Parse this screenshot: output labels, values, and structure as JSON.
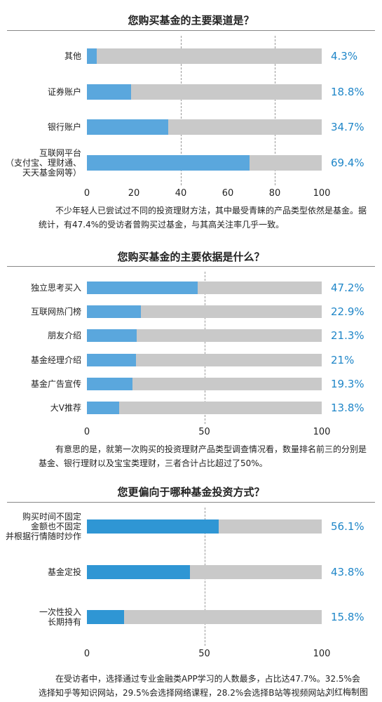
{
  "chart_data": [
    {
      "type": "bar",
      "title": "您购买基金的主要渠道是？",
      "categories": [
        "其他",
        "证券账户",
        "银行账户",
        "互联网平台\n（支付宝、理财通、\n天天基金网等）"
      ],
      "values": [
        4.3,
        18.8,
        34.7,
        69.4
      ],
      "value_labels": [
        "4.3%",
        "18.8%",
        "34.7%",
        "69.4%"
      ],
      "color": "#5aa7dd",
      "track_color": "#c9c9c9",
      "xlim": [
        0,
        100
      ],
      "xticks": [
        0,
        20,
        40,
        60,
        80,
        100
      ],
      "grid": [
        40,
        80
      ],
      "note": "不少年轻人已尝试过不同的投资理财方法，其中最受青睐的产品类型依然是基金。据统计，有47.4%的受访者曾购买过基金，与其高关注率几乎一致。"
    },
    {
      "type": "bar",
      "title": "您购买基金的主要依据是什么？",
      "categories": [
        "独立思考买入",
        "互联网热门榜",
        "朋友介绍",
        "基金经理介绍",
        "基金广告宣传",
        "大V推荐"
      ],
      "values": [
        47.2,
        22.9,
        21.3,
        21,
        19.3,
        13.8
      ],
      "value_labels": [
        "47.2%",
        "22.9%",
        "21.3%",
        "21%",
        "19.3%",
        "13.8%"
      ],
      "color": "#5aa7dd",
      "track_color": "#c9c9c9",
      "xlim": [
        0,
        100
      ],
      "xticks": [
        0,
        50,
        100
      ],
      "grid": [
        50
      ],
      "note": "有意思的是，就第一次购买的投资理财产品类型调查情况看，数量排名前三的分别是基金、银行理财以及宝宝类理财，三者合计占比超过了50%。"
    },
    {
      "type": "bar",
      "title": "您更偏向于哪种基金投资方式？",
      "categories": [
        "购买时间不固定\n金额也不固定\n并根据行情随时炒作",
        "基金定投",
        "一次性投入\n长期持有"
      ],
      "values": [
        56.1,
        43.8,
        15.8
      ],
      "value_labels": [
        "56.1%",
        "43.8%",
        "15.8%"
      ],
      "color": "#2f96d4",
      "track_color": "#c9c9c9",
      "xlim": [
        0,
        100
      ],
      "xticks": [
        0,
        50,
        100
      ],
      "grid": [
        50
      ],
      "note": "在受访者中，选择通过专业金融类APP学习的人数最多，占比达47.7%。32.5%会选择知乎等知识网站，29.5%会选择网络课程，28.2%会选择B站等视频网站。"
    }
  ],
  "credit": "刘红梅制图"
}
